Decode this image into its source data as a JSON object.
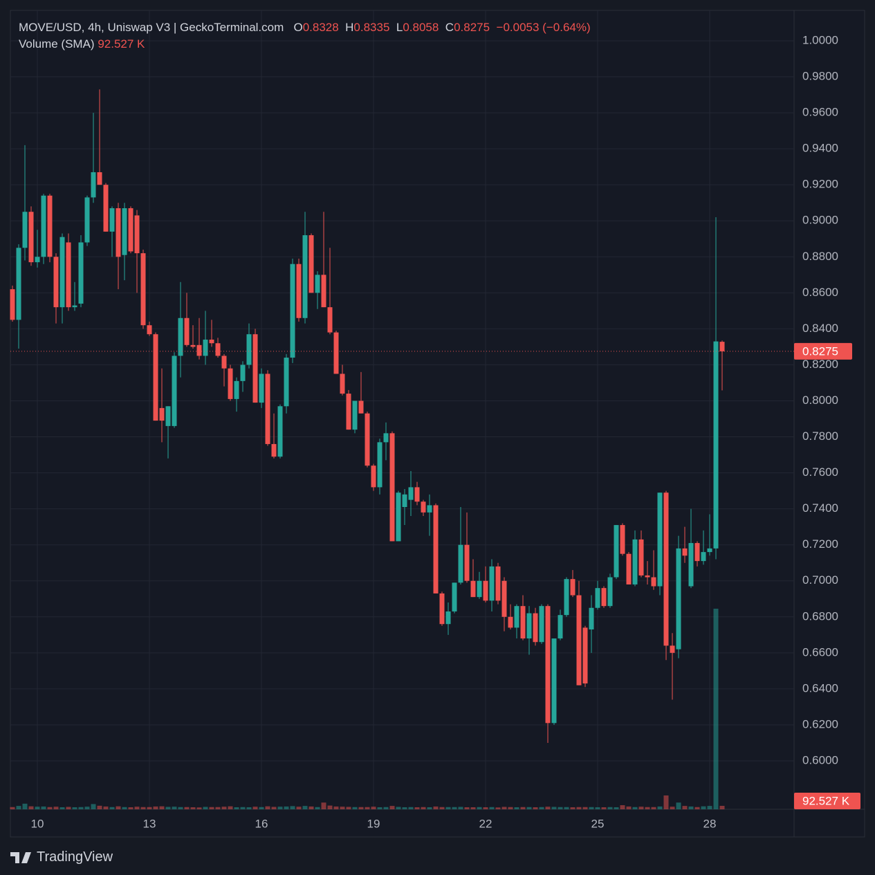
{
  "chart_data": {
    "type": "candlestick",
    "title": "MOVE/USD, 4h, Uniswap V3 | GeckoTerminal.com",
    "ohlc_keys": [
      "O",
      "H",
      "L",
      "C"
    ],
    "change": "−0.0053 (−0.64%)",
    "up_color": "#26a69a",
    "down_color": "#ef5350",
    "grid": true,
    "categories": [
      null,
      null,
      null,
      null,
      "10",
      null,
      null,
      null,
      null,
      null,
      null,
      null,
      null,
      null,
      null,
      null,
      null,
      null,
      null,
      null,
      null,
      null,
      "13",
      null,
      null,
      null,
      null,
      null,
      null,
      null,
      null,
      null,
      null,
      null,
      null,
      null,
      null,
      null,
      null,
      null,
      "16",
      null,
      null,
      null,
      null,
      null,
      null,
      null,
      null,
      null,
      null,
      null,
      null,
      null,
      null,
      null,
      null,
      null,
      "19",
      null,
      null,
      null,
      null,
      null,
      null,
      null,
      null,
      null,
      null,
      null,
      null,
      null,
      null,
      null,
      null,
      null,
      "22",
      null,
      null,
      null,
      null,
      null,
      null,
      null,
      null,
      null,
      null,
      null,
      null,
      null,
      null,
      null,
      null,
      null,
      "25",
      null,
      null,
      null,
      null,
      null,
      null,
      null,
      null,
      null,
      null,
      null,
      null,
      null,
      null,
      null,
      null,
      null,
      "28",
      null,
      null
    ],
    "open": [
      0.862,
      0.845,
      0.885,
      0.905,
      0.877,
      0.88,
      0.914,
      0.88,
      0.852,
      0.888,
      0.852,
      0.854,
      0.888,
      0.913,
      0.927,
      0.92,
      0.894,
      0.907,
      0.881,
      0.907,
      0.903,
      0.882,
      0.842,
      0.837,
      0.796,
      0.786,
      0.786,
      0.825,
      0.846,
      0.831,
      0.831,
      0.825,
      0.834,
      0.832,
      0.825,
      0.818,
      0.801,
      0.811,
      0.82,
      0.837,
      0.799,
      0.815,
      0.776,
      0.769,
      0.797,
      0.824,
      0.876,
      0.846,
      0.892,
      0.86,
      0.87,
      0.852,
      0.838,
      0.815,
      0.804,
      0.784,
      0.8,
      0.793,
      0.764,
      0.752,
      0.777,
      0.782,
      0.722,
      0.741,
      0.745,
      0.752,
      0.744,
      0.738,
      0.742,
      0.693,
      0.676,
      0.683,
      0.699,
      0.72,
      0.7,
      0.691,
      0.7,
      0.689,
      0.708,
      0.7,
      0.68,
      0.674,
      0.686,
      0.668,
      0.682,
      0.666,
      0.686,
      0.621,
      0.668,
      0.681,
      0.701,
      0.692,
      0.674,
      0.673,
      0.685,
      0.696,
      0.686,
      0.702,
      0.731,
      0.715,
      0.698,
      0.723,
      0.703,
      0.702,
      0.697,
      0.749,
      0.664,
      0.662,
      0.718,
      0.697,
      0.721,
      0.711,
      0.716,
      0.718,
      0.8328
    ],
    "high": [
      0.864,
      0.887,
      0.942,
      0.908,
      0.895,
      0.915,
      0.915,
      0.882,
      0.893,
      0.893,
      0.866,
      0.892,
      0.914,
      0.96,
      0.973,
      0.921,
      0.908,
      0.91,
      0.91,
      0.908,
      0.906,
      0.884,
      0.844,
      0.838,
      0.818,
      0.797,
      0.827,
      0.866,
      0.86,
      0.842,
      0.846,
      0.85,
      0.845,
      0.835,
      0.826,
      0.82,
      0.813,
      0.822,
      0.843,
      0.84,
      0.818,
      0.817,
      0.793,
      0.798,
      0.826,
      0.879,
      0.879,
      0.905,
      0.893,
      0.872,
      0.905,
      0.885,
      0.839,
      0.82,
      0.806,
      0.8,
      0.816,
      0.794,
      0.765,
      0.779,
      0.788,
      0.783,
      0.75,
      0.751,
      0.761,
      0.755,
      0.745,
      0.748,
      0.743,
      0.694,
      0.688,
      0.699,
      0.741,
      0.738,
      0.712,
      0.705,
      0.708,
      0.712,
      0.71,
      0.702,
      0.687,
      0.687,
      0.692,
      0.686,
      0.685,
      0.687,
      0.687,
      0.668,
      0.684,
      0.702,
      0.706,
      0.7,
      0.675,
      0.692,
      0.7,
      0.697,
      0.704,
      0.731,
      0.732,
      0.716,
      0.728,
      0.728,
      0.711,
      0.717,
      0.749,
      0.75,
      0.671,
      0.725,
      0.73,
      0.74,
      0.722,
      0.728,
      0.737,
      0.902,
      0.8335
    ],
    "low": [
      0.844,
      0.829,
      0.878,
      0.875,
      0.874,
      0.876,
      0.877,
      0.843,
      0.843,
      0.85,
      0.85,
      0.852,
      0.886,
      0.91,
      0.92,
      0.894,
      0.88,
      0.862,
      0.867,
      0.882,
      0.86,
      0.84,
      0.836,
      0.789,
      0.777,
      0.768,
      0.785,
      0.813,
      0.83,
      0.829,
      0.823,
      0.82,
      0.83,
      0.824,
      0.808,
      0.8,
      0.794,
      0.805,
      0.818,
      0.799,
      0.796,
      0.775,
      0.768,
      0.768,
      0.793,
      0.821,
      0.844,
      0.843,
      0.86,
      0.851,
      0.852,
      0.837,
      0.815,
      0.803,
      0.784,
      0.782,
      0.793,
      0.763,
      0.75,
      0.748,
      0.767,
      0.722,
      0.722,
      0.731,
      0.736,
      0.742,
      0.736,
      0.725,
      0.693,
      0.675,
      0.67,
      0.682,
      0.698,
      0.699,
      0.691,
      0.69,
      0.688,
      0.683,
      0.687,
      0.672,
      0.673,
      0.668,
      0.667,
      0.659,
      0.664,
      0.665,
      0.61,
      0.62,
      0.667,
      0.68,
      0.691,
      0.642,
      0.641,
      0.66,
      0.684,
      0.685,
      0.685,
      0.701,
      0.714,
      0.698,
      0.697,
      0.702,
      0.698,
      0.695,
      0.692,
      0.656,
      0.634,
      0.657,
      0.71,
      0.696,
      0.708,
      0.709,
      0.714,
      0.712,
      0.8058
    ],
    "close": [
      0.845,
      0.885,
      0.905,
      0.877,
      0.88,
      0.914,
      0.88,
      0.852,
      0.891,
      0.852,
      0.853,
      0.888,
      0.913,
      0.927,
      0.92,
      0.894,
      0.907,
      0.88,
      0.907,
      0.883,
      0.882,
      0.842,
      0.837,
      0.789,
      0.789,
      0.797,
      0.825,
      0.846,
      0.831,
      0.83,
      0.825,
      0.834,
      0.832,
      0.825,
      0.818,
      0.801,
      0.811,
      0.82,
      0.837,
      0.799,
      0.815,
      0.776,
      0.769,
      0.797,
      0.824,
      0.876,
      0.846,
      0.892,
      0.86,
      0.87,
      0.852,
      0.838,
      0.815,
      0.804,
      0.784,
      0.8,
      0.793,
      0.764,
      0.752,
      0.777,
      0.782,
      0.722,
      0.749,
      0.748,
      0.752,
      0.744,
      0.738,
      0.742,
      0.693,
      0.676,
      0.683,
      0.699,
      0.72,
      0.7,
      0.691,
      0.7,
      0.689,
      0.708,
      0.689,
      0.68,
      0.674,
      0.686,
      0.668,
      0.682,
      0.666,
      0.686,
      0.621,
      0.668,
      0.681,
      0.701,
      0.692,
      0.642,
      0.643,
      0.685,
      0.696,
      0.686,
      0.702,
      0.731,
      0.715,
      0.698,
      0.723,
      0.703,
      0.702,
      0.697,
      0.749,
      0.664,
      0.66,
      0.718,
      0.714,
      0.721,
      0.711,
      0.716,
      0.718,
      0.833,
      0.8275
    ],
    "volume": {
      "name": "Volume (SMA)",
      "values": [
        60000,
        90000,
        150000,
        80000,
        70000,
        75000,
        60000,
        70000,
        55000,
        65000,
        55000,
        60000,
        70000,
        140000,
        95000,
        75000,
        60000,
        80000,
        60000,
        55000,
        70000,
        60000,
        60000,
        75000,
        80000,
        65000,
        70000,
        60000,
        60000,
        55000,
        50000,
        65000,
        60000,
        60000,
        70000,
        80000,
        55000,
        60000,
        55000,
        70000,
        60000,
        80000,
        65000,
        70000,
        75000,
        85000,
        70000,
        90000,
        75000,
        60000,
        180000,
        100000,
        75000,
        70000,
        65000,
        60000,
        60000,
        60000,
        70000,
        55000,
        60000,
        90000,
        65000,
        55000,
        60000,
        55000,
        60000,
        55000,
        75000,
        60000,
        60000,
        60000,
        65000,
        55000,
        55000,
        60000,
        55000,
        60000,
        50000,
        65000,
        60000,
        55000,
        60000,
        60000,
        55000,
        60000,
        70000,
        65000,
        60000,
        60000,
        55000,
        60000,
        60000,
        60000,
        55000,
        55000,
        60000,
        55000,
        110000,
        75000,
        60000,
        70000,
        60000,
        60000,
        75000,
        370000,
        70000,
        180000,
        90000,
        75000,
        60000,
        80000,
        90000,
        5365000,
        92527
      ],
      "value_labels": [
        null,
        null,
        null,
        null,
        null,
        null,
        null,
        null,
        null,
        null,
        null,
        null,
        null,
        null,
        null,
        null,
        null,
        null,
        null,
        null,
        null,
        null,
        null,
        null,
        null,
        null,
        null,
        null,
        null,
        null,
        null,
        null,
        null,
        null,
        null,
        null,
        null,
        null,
        null,
        null,
        null,
        null,
        null,
        null,
        null,
        null,
        null,
        null,
        null,
        null,
        null,
        null,
        null,
        null,
        null,
        null,
        null,
        null,
        null,
        null,
        null,
        null,
        null,
        null,
        null,
        null,
        null,
        null,
        null,
        null,
        null,
        null,
        null,
        null,
        null,
        null,
        null,
        null,
        null,
        null,
        null,
        null,
        null,
        null,
        null,
        null,
        null,
        null,
        null,
        null,
        null,
        null,
        null,
        null,
        null,
        null,
        null,
        null,
        null,
        null,
        null,
        null,
        null,
        null,
        null,
        null,
        null,
        null,
        null,
        null,
        null,
        null,
        null,
        null,
        "92.527 K"
      ]
    },
    "ylim": [
      0.5731,
      1.0169
    ],
    "yticks": [
      {
        "value": 0.6,
        "label": "0.6000"
      },
      {
        "value": 0.62,
        "label": "0.6200"
      },
      {
        "value": 0.64,
        "label": "0.6400"
      },
      {
        "value": 0.66,
        "label": "0.6600"
      },
      {
        "value": 0.68,
        "label": "0.6800"
      },
      {
        "value": 0.7,
        "label": "0.7000"
      },
      {
        "value": 0.72,
        "label": "0.7200"
      },
      {
        "value": 0.74,
        "label": "0.7400"
      },
      {
        "value": 0.76,
        "label": "0.7600"
      },
      {
        "value": 0.78,
        "label": "0.7800"
      },
      {
        "value": 0.8,
        "label": "0.8000"
      },
      {
        "value": 0.82,
        "label": "0.8200"
      },
      {
        "value": 0.84,
        "label": "0.8400"
      },
      {
        "value": 0.86,
        "label": "0.8600"
      },
      {
        "value": 0.88,
        "label": "0.8800"
      },
      {
        "value": 0.9,
        "label": "0.9000"
      },
      {
        "value": 0.92,
        "label": "0.9200"
      },
      {
        "value": 0.94,
        "label": "0.9400"
      },
      {
        "value": 0.96,
        "label": "0.9600"
      },
      {
        "value": 0.98,
        "label": "0.9800"
      },
      {
        "value": 1.0,
        "label": "1.0000"
      }
    ]
  },
  "footer": {
    "brand": "TradingView"
  }
}
